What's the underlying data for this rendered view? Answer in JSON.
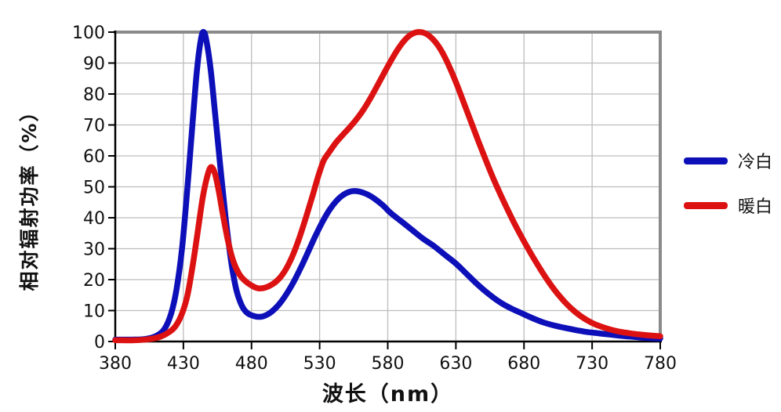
{
  "colors": {
    "cool_white": "#0d10b8",
    "warm_white": "#dc1212",
    "grid": "#bdbdbd",
    "plot_border": "#8a8a8a",
    "axis": "#000000",
    "tick_label": "#111111"
  },
  "chart_data": {
    "type": "line",
    "title": "",
    "xlabel": "波长（nm）",
    "ylabel": "相对辐射功率（%）",
    "xlim": [
      380,
      780
    ],
    "ylim": [
      0,
      100
    ],
    "x_ticks": [
      380,
      430,
      480,
      530,
      580,
      630,
      680,
      730,
      780
    ],
    "y_ticks": [
      0,
      10,
      20,
      30,
      40,
      50,
      60,
      70,
      80,
      90,
      100
    ],
    "grid": true,
    "legend_position": "right",
    "series": [
      {
        "name": "冷白",
        "color": "#0d10b8",
        "points": [
          [
            380,
            0.6
          ],
          [
            392,
            0.6
          ],
          [
            402,
            0.8
          ],
          [
            410,
            1.8
          ],
          [
            416,
            4
          ],
          [
            421,
            9
          ],
          [
            425,
            17
          ],
          [
            429,
            30
          ],
          [
            433,
            50
          ],
          [
            437,
            72
          ],
          [
            440,
            88
          ],
          [
            443,
            98
          ],
          [
            445,
            100
          ],
          [
            447,
            97
          ],
          [
            450,
            88
          ],
          [
            453,
            75
          ],
          [
            457,
            57
          ],
          [
            461,
            40
          ],
          [
            465,
            26
          ],
          [
            469,
            16.5
          ],
          [
            473,
            11.5
          ],
          [
            477,
            9.2
          ],
          [
            482,
            8.2
          ],
          [
            487,
            8
          ],
          [
            492,
            8.8
          ],
          [
            497,
            10.5
          ],
          [
            502,
            13
          ],
          [
            507,
            16.3
          ],
          [
            512,
            20.2
          ],
          [
            517,
            24.6
          ],
          [
            522,
            29.4
          ],
          [
            527,
            34.2
          ],
          [
            532,
            38.6
          ],
          [
            537,
            42.4
          ],
          [
            542,
            45.3
          ],
          [
            547,
            47.3
          ],
          [
            552,
            48.4
          ],
          [
            557,
            48.6
          ],
          [
            562,
            48.1
          ],
          [
            567,
            47.1
          ],
          [
            572,
            45.6
          ],
          [
            577,
            43.8
          ],
          [
            582,
            41.6
          ],
          [
            590,
            38.8
          ],
          [
            598,
            36
          ],
          [
            606,
            33.2
          ],
          [
            614,
            30.8
          ],
          [
            622,
            28
          ],
          [
            630,
            25.2
          ],
          [
            638,
            21.8
          ],
          [
            646,
            18.4
          ],
          [
            654,
            15.4
          ],
          [
            662,
            12.8
          ],
          [
            670,
            10.8
          ],
          [
            678,
            9.2
          ],
          [
            686,
            7.6
          ],
          [
            694,
            6.2
          ],
          [
            702,
            5.2
          ],
          [
            710,
            4.4
          ],
          [
            718,
            3.7
          ],
          [
            726,
            3.1
          ],
          [
            734,
            2.7
          ],
          [
            742,
            2.3
          ],
          [
            750,
            1.9
          ],
          [
            758,
            1.6
          ],
          [
            766,
            1.3
          ],
          [
            773,
            1.1
          ],
          [
            780,
            1
          ]
        ]
      },
      {
        "name": "暖白",
        "color": "#dc1212",
        "points": [
          [
            380,
            0.4
          ],
          [
            394,
            0.4
          ],
          [
            404,
            0.7
          ],
          [
            412,
            1.4
          ],
          [
            418,
            2.6
          ],
          [
            424,
            4.8
          ],
          [
            429,
            9
          ],
          [
            433,
            15
          ],
          [
            437,
            25
          ],
          [
            441,
            37
          ],
          [
            444,
            46
          ],
          [
            447,
            52.5
          ],
          [
            450,
            56.3
          ],
          [
            453,
            54.5
          ],
          [
            456,
            48.5
          ],
          [
            459,
            41
          ],
          [
            463,
            32
          ],
          [
            467,
            25.5
          ],
          [
            471,
            21.8
          ],
          [
            475,
            19.7
          ],
          [
            480,
            18.1
          ],
          [
            485,
            17.2
          ],
          [
            490,
            17.4
          ],
          [
            495,
            18.4
          ],
          [
            500,
            20.2
          ],
          [
            505,
            23.2
          ],
          [
            510,
            27.6
          ],
          [
            515,
            33.4
          ],
          [
            520,
            40.2
          ],
          [
            525,
            47.4
          ],
          [
            529,
            53.5
          ],
          [
            533,
            58.5
          ],
          [
            537,
            61.2
          ],
          [
            542,
            64.3
          ],
          [
            547,
            66.8
          ],
          [
            552,
            69.2
          ],
          [
            557,
            71.8
          ],
          [
            562,
            74.8
          ],
          [
            567,
            78.4
          ],
          [
            572,
            82.4
          ],
          [
            577,
            86.5
          ],
          [
            582,
            90.5
          ],
          [
            587,
            94.2
          ],
          [
            592,
            97.2
          ],
          [
            597,
            99.2
          ],
          [
            602,
            100
          ],
          [
            607,
            99.7
          ],
          [
            612,
            98.2
          ],
          [
            617,
            95.6
          ],
          [
            622,
            91.8
          ],
          [
            627,
            87
          ],
          [
            632,
            81.6
          ],
          [
            637,
            75.8
          ],
          [
            642,
            70
          ],
          [
            647,
            64.2
          ],
          [
            652,
            58.6
          ],
          [
            657,
            53.2
          ],
          [
            662,
            48.2
          ],
          [
            667,
            43.5
          ],
          [
            672,
            39
          ],
          [
            677,
            34.8
          ],
          [
            682,
            30.8
          ],
          [
            687,
            27
          ],
          [
            692,
            23.4
          ],
          [
            697,
            20
          ],
          [
            702,
            16.9
          ],
          [
            707,
            14.2
          ],
          [
            712,
            11.8
          ],
          [
            717,
            9.8
          ],
          [
            722,
            8.1
          ],
          [
            727,
            6.7
          ],
          [
            732,
            5.6
          ],
          [
            738,
            4.6
          ],
          [
            744,
            3.8
          ],
          [
            750,
            3.2
          ],
          [
            757,
            2.7
          ],
          [
            764,
            2.3
          ],
          [
            771,
            2
          ],
          [
            780,
            1.7
          ]
        ]
      }
    ]
  }
}
